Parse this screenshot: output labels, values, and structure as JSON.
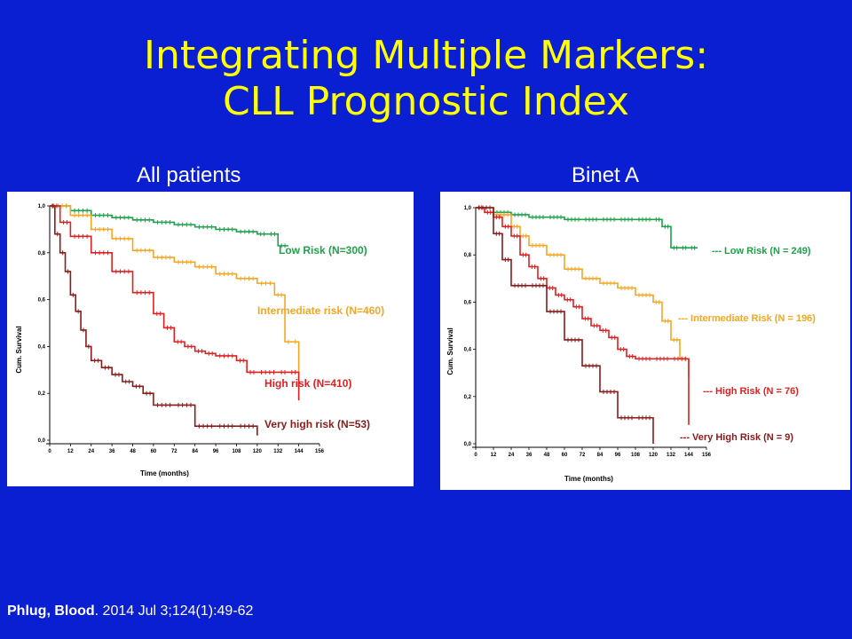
{
  "slide": {
    "title_line1": "Integrating Multiple Markers:",
    "title_line2": "CLL Prognostic Index",
    "citation_author": "Phlug, Blood",
    "citation_rest": ". 2014 Jul 3;124(1):49-62"
  },
  "colors": {
    "background": "#0b1fd2",
    "title": "#ffff00",
    "low": "#1fa04a",
    "intermediate": "#f5a623",
    "high": "#e02020",
    "very_high": "#8b1a1a"
  },
  "chart_data": [
    {
      "type": "line",
      "title": "All patients",
      "xlabel": "Time (months)",
      "ylabel": "Cum. Survival",
      "xlim": [
        0,
        156
      ],
      "ylim": [
        0,
        1
      ],
      "x_ticks": [
        "0",
        "12",
        "24",
        "36",
        "48",
        "60",
        "72",
        "84",
        "96",
        "108",
        "120",
        "132",
        "144",
        "156"
      ],
      "y_ticks": [
        "0,0",
        "0,2",
        "0,4",
        "0,6",
        "0,8",
        "1,0"
      ],
      "series": [
        {
          "name": "Low Risk (N=300)",
          "color": "#1fa04a",
          "x": [
            0,
            12,
            24,
            36,
            48,
            60,
            72,
            84,
            96,
            108,
            120,
            126,
            132,
            138
          ],
          "y": [
            1.0,
            0.98,
            0.96,
            0.95,
            0.94,
            0.93,
            0.92,
            0.91,
            0.9,
            0.89,
            0.88,
            0.88,
            0.83,
            0.83
          ]
        },
        {
          "name": "Intermediate risk (N=460)",
          "color": "#f5a623",
          "x": [
            0,
            12,
            24,
            36,
            48,
            60,
            72,
            84,
            96,
            108,
            120,
            130,
            136,
            140,
            144
          ],
          "y": [
            1.0,
            0.96,
            0.9,
            0.86,
            0.81,
            0.78,
            0.76,
            0.74,
            0.71,
            0.69,
            0.67,
            0.62,
            0.42,
            0.42,
            0.28
          ]
        },
        {
          "name": "High risk (N=410)",
          "color": "#e02020",
          "x": [
            0,
            6,
            12,
            24,
            36,
            48,
            60,
            66,
            72,
            78,
            84,
            90,
            96,
            108,
            114,
            120,
            132,
            138,
            144
          ],
          "y": [
            1.0,
            0.93,
            0.87,
            0.8,
            0.72,
            0.63,
            0.54,
            0.48,
            0.42,
            0.4,
            0.38,
            0.37,
            0.36,
            0.34,
            0.29,
            0.29,
            0.29,
            0.29,
            0.17
          ]
        },
        {
          "name": "Very high risk (N=53)",
          "color": "#8b1a1a",
          "x": [
            0,
            3,
            6,
            9,
            12,
            15,
            18,
            21,
            24,
            30,
            36,
            42,
            48,
            54,
            60,
            72,
            84,
            96,
            108,
            120
          ],
          "y": [
            1.0,
            0.88,
            0.8,
            0.72,
            0.62,
            0.55,
            0.47,
            0.4,
            0.34,
            0.31,
            0.28,
            0.25,
            0.23,
            0.2,
            0.15,
            0.15,
            0.06,
            0.06,
            0.06,
            0.02
          ]
        }
      ]
    },
    {
      "type": "line",
      "title": "Binet A",
      "xlabel": "Time (months)",
      "ylabel": "Cum. Survival",
      "xlim": [
        0,
        156
      ],
      "ylim": [
        0,
        1
      ],
      "x_ticks": [
        "0",
        "12",
        "24",
        "36",
        "48",
        "60",
        "72",
        "84",
        "96",
        "108",
        "120",
        "132",
        "144",
        "156"
      ],
      "y_ticks": [
        "0,0",
        "0,2",
        "0,4",
        "0,6",
        "0,8",
        "1,0"
      ],
      "series": [
        {
          "name": "--- Low Risk (N = 249)",
          "color": "#1fa04a",
          "x": [
            0,
            12,
            24,
            36,
            48,
            60,
            72,
            84,
            96,
            108,
            120,
            126,
            132,
            138,
            144,
            150
          ],
          "y": [
            1.0,
            0.98,
            0.97,
            0.96,
            0.96,
            0.95,
            0.95,
            0.95,
            0.95,
            0.95,
            0.95,
            0.92,
            0.83,
            0.83,
            0.83,
            0.83
          ]
        },
        {
          "name": "--- Intermediate Risk (N = 196)",
          "color": "#f5a623",
          "x": [
            0,
            12,
            24,
            30,
            36,
            48,
            60,
            72,
            84,
            96,
            108,
            120,
            126,
            132,
            138,
            144
          ],
          "y": [
            1.0,
            0.97,
            0.92,
            0.88,
            0.84,
            0.8,
            0.74,
            0.7,
            0.68,
            0.66,
            0.63,
            0.6,
            0.52,
            0.44,
            0.36,
            0.28
          ]
        },
        {
          "name": "--- High Risk (N = 76)",
          "color": "#e02020",
          "x": [
            0,
            6,
            12,
            18,
            24,
            30,
            36,
            42,
            48,
            54,
            60,
            66,
            72,
            78,
            84,
            90,
            96,
            102,
            108,
            120,
            132,
            144
          ],
          "y": [
            1.0,
            0.98,
            0.96,
            0.92,
            0.88,
            0.8,
            0.75,
            0.7,
            0.66,
            0.63,
            0.61,
            0.58,
            0.53,
            0.5,
            0.48,
            0.45,
            0.4,
            0.37,
            0.36,
            0.36,
            0.36,
            0.08
          ]
        },
        {
          "name": "--- Very High Risk (N = 9)",
          "color": "#8b1a1a",
          "x": [
            0,
            12,
            18,
            24,
            36,
            48,
            60,
            72,
            84,
            96,
            108,
            120
          ],
          "y": [
            1.0,
            0.89,
            0.78,
            0.67,
            0.67,
            0.56,
            0.44,
            0.33,
            0.22,
            0.11,
            0.11,
            0.0
          ]
        }
      ]
    }
  ]
}
